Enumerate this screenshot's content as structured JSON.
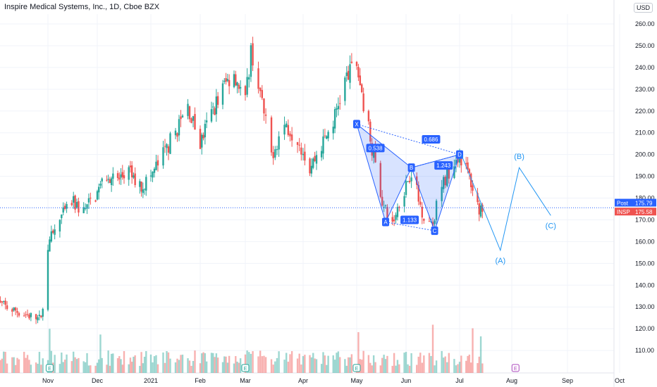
{
  "header": {
    "title": "Inspire Medical Systems, Inc., 1D, Cboe BZX",
    "currency": "USD"
  },
  "price_labels": {
    "post": {
      "tag": "Post",
      "value": "175.79",
      "color": "#2962ff"
    },
    "last": {
      "tag": "INSP",
      "value": "175.58",
      "color": "#ef5350"
    }
  },
  "colors": {
    "up": "#26a69a",
    "down": "#ef5350",
    "pattern": "#2962ff",
    "wave": "#2196f3"
  },
  "chart_data": {
    "type": "candlestick",
    "y_axis": {
      "ylim": [
        100,
        265
      ],
      "ticks": [
        110,
        120,
        130,
        140,
        150,
        160,
        170,
        180,
        190,
        200,
        210,
        220,
        230,
        240,
        250,
        260
      ]
    },
    "x_axis": {
      "labels": [
        {
          "label": "Nov",
          "x": "2020-11-02"
        },
        {
          "label": "Dec",
          "x": "2020-12-01"
        },
        {
          "label": "2021",
          "x": "2021-01-04"
        },
        {
          "label": "Feb",
          "x": "2021-02-01"
        },
        {
          "label": "Mar",
          "x": "2021-03-01"
        },
        {
          "label": "Apr",
          "x": "2021-04-01"
        },
        {
          "label": "May",
          "x": "2021-05-03"
        },
        {
          "label": "Jun",
          "x": "2021-06-01"
        },
        {
          "label": "Jul",
          "x": "2021-07-01"
        },
        {
          "label": "Aug",
          "x": "2021-08-02"
        },
        {
          "label": "Sep",
          "x": "2021-09-01"
        },
        {
          "label": "Oct",
          "x": "2021-10-01"
        }
      ]
    },
    "price_path": [
      [
        "2020-10-01",
        133
      ],
      [
        "2020-10-08",
        130
      ],
      [
        "2020-10-15",
        128
      ],
      [
        "2020-10-22",
        126
      ],
      [
        "2020-10-29",
        124
      ],
      [
        "2020-11-02",
        155
      ],
      [
        "2020-11-04",
        162
      ],
      [
        "2020-11-09",
        170
      ],
      [
        "2020-11-16",
        178
      ],
      [
        "2020-11-23",
        174
      ],
      [
        "2020-11-30",
        181
      ],
      [
        "2020-12-07",
        191
      ],
      [
        "2020-12-14",
        188
      ],
      [
        "2020-12-21",
        192
      ],
      [
        "2020-12-28",
        185
      ],
      [
        "2021-01-04",
        190
      ],
      [
        "2021-01-11",
        200
      ],
      [
        "2021-01-19",
        212
      ],
      [
        "2021-01-25",
        222
      ],
      [
        "2021-02-01",
        205
      ],
      [
        "2021-02-08",
        219
      ],
      [
        "2021-02-16",
        232
      ],
      [
        "2021-02-22",
        238
      ],
      [
        "2021-03-01",
        224
      ],
      [
        "2021-03-04",
        248
      ],
      [
        "2021-03-08",
        232
      ],
      [
        "2021-03-15",
        200
      ],
      [
        "2021-03-22",
        214
      ],
      [
        "2021-03-29",
        208
      ],
      [
        "2021-04-05",
        194
      ],
      [
        "2021-04-12",
        204
      ],
      [
        "2021-04-19",
        215
      ],
      [
        "2021-04-26",
        234
      ],
      [
        "2021-05-03",
        242
      ],
      [
        "2021-05-06",
        228
      ],
      [
        "2021-05-10",
        212
      ],
      [
        "2021-05-14",
        195
      ],
      [
        "2021-05-19",
        175
      ],
      [
        "2021-05-24",
        168
      ],
      [
        "2021-05-28",
        178
      ],
      [
        "2021-06-04",
        193
      ],
      [
        "2021-06-09",
        176
      ],
      [
        "2021-06-15",
        167
      ],
      [
        "2021-06-21",
        185
      ],
      [
        "2021-06-28",
        198
      ],
      [
        "2021-07-01",
        200
      ],
      [
        "2021-07-07",
        190
      ],
      [
        "2021-07-12",
        176
      ],
      [
        "2021-07-15",
        175.58
      ]
    ],
    "volume": {
      "earnings_days": [
        "2020-11-03",
        "2021-03-01",
        "2021-05-03",
        "2021-08-04"
      ],
      "earnings_label": "E",
      "high_volume_days": [
        "2020-11-03",
        "2020-12-03",
        "2021-05-04",
        "2021-06-16",
        "2021-07-09",
        "2021-07-14"
      ]
    },
    "harmonic_pattern": {
      "points": [
        {
          "label": "X",
          "x": "2021-05-03",
          "y": 214
        },
        {
          "label": "A",
          "x": "2021-05-20",
          "y": 169
        },
        {
          "label": "B",
          "x": "2021-06-04",
          "y": 194
        },
        {
          "label": "C",
          "x": "2021-06-17",
          "y": 165
        },
        {
          "label": "D",
          "x": "2021-07-01",
          "y": 200
        }
      ],
      "ratios": [
        {
          "label": "0.538",
          "x": "2021-05-14",
          "y": 203
        },
        {
          "label": "0.686",
          "x": "2021-06-15",
          "y": 207
        },
        {
          "label": "1.243",
          "x": "2021-06-22",
          "y": 195
        },
        {
          "label": "1.133",
          "x": "2021-06-03",
          "y": 170
        }
      ]
    },
    "wave_projection": {
      "points": [
        {
          "label": "",
          "x": "2021-07-02",
          "y": 200
        },
        {
          "label": "(A)",
          "x": "2021-07-26",
          "y": 156
        },
        {
          "label": "(B)",
          "x": "2021-08-06",
          "y": 194
        },
        {
          "label": "(C)",
          "x": "2021-08-23",
          "y": 172
        }
      ]
    },
    "current_price": 175.58,
    "post_price": 175.79
  }
}
